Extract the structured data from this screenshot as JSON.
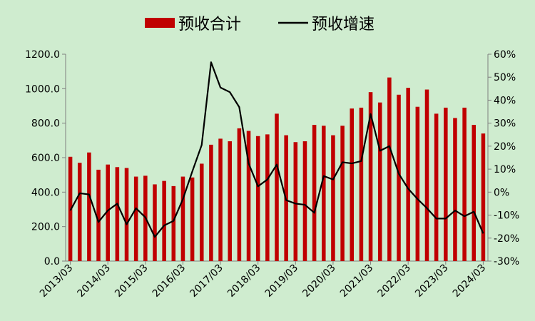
{
  "chart_data": {
    "type": "bar+line",
    "legend": [
      {
        "name": "预收合计",
        "kind": "bar",
        "color": "#c00000"
      },
      {
        "name": "预收增速",
        "kind": "line",
        "color": "#000000"
      }
    ],
    "left_axis": {
      "ylim": [
        0,
        1200
      ],
      "ticks": [
        0,
        200,
        400,
        600,
        800,
        1000,
        1200
      ],
      "tick_labels": [
        "0.0",
        "200.0",
        "400.0",
        "600.0",
        "800.0",
        "1000.0",
        "1200.0"
      ]
    },
    "right_axis": {
      "ylim": [
        -30,
        60
      ],
      "ticks": [
        -30,
        -20,
        -10,
        0,
        10,
        20,
        30,
        40,
        50,
        60
      ],
      "tick_labels": [
        "-30%",
        "-20%",
        "-10%",
        "0%",
        "10%",
        "20%",
        "30%",
        "40%",
        "50%",
        "60%"
      ]
    },
    "x_labels": [
      "2013/03",
      "2014/03",
      "2015/03",
      "2016/03",
      "2017/03",
      "2018/03",
      "2019/03",
      "2020/03",
      "2021/03",
      "2022/03",
      "2023/03",
      "2024/03"
    ],
    "categories": [
      "2013Q1",
      "2013Q2",
      "2013Q3",
      "2013Q4",
      "2014Q1",
      "2014Q2",
      "2014Q3",
      "2014Q4",
      "2015Q1",
      "2015Q2",
      "2015Q3",
      "2015Q4",
      "2016Q1",
      "2016Q2",
      "2016Q3",
      "2016Q4",
      "2017Q1",
      "2017Q2",
      "2017Q3",
      "2017Q4",
      "2018Q1",
      "2018Q2",
      "2018Q3",
      "2018Q4",
      "2019Q1",
      "2019Q2",
      "2019Q3",
      "2019Q4",
      "2020Q1",
      "2020Q2",
      "2020Q3",
      "2020Q4",
      "2021Q1",
      "2021Q2",
      "2021Q3",
      "2021Q4",
      "2022Q1",
      "2022Q2",
      "2022Q3",
      "2022Q4",
      "2023Q1",
      "2023Q2",
      "2023Q3",
      "2023Q4",
      "2024Q1"
    ],
    "series": [
      {
        "name": "预收合计",
        "type": "bar",
        "axis": "left",
        "values": [
          605,
          570,
          630,
          530,
          560,
          545,
          540,
          490,
          495,
          445,
          465,
          435,
          490,
          485,
          565,
          675,
          710,
          695,
          770,
          755,
          725,
          735,
          855,
          730,
          690,
          695,
          790,
          785,
          730,
          785,
          885,
          890,
          980,
          920,
          1065,
          965,
          1005,
          895,
          995,
          855,
          890,
          830,
          890,
          790,
          740
        ]
      },
      {
        "name": "预收增速",
        "type": "line",
        "axis": "right",
        "values": [
          -8,
          -0.5,
          -1,
          -13,
          -8,
          -5,
          -14,
          -7,
          -11,
          -19.5,
          -14.5,
          -12.5,
          -3,
          9,
          20.5,
          56.5,
          45.5,
          43.5,
          37,
          12.5,
          2.5,
          5.5,
          12,
          -3.5,
          -5,
          -5.5,
          -9,
          7,
          5.5,
          13,
          12.5,
          13.5,
          34,
          18,
          20,
          8,
          1.5,
          -3,
          -7,
          -11.5,
          -11.5,
          -8,
          -10.5,
          -8.5,
          -18
        ]
      }
    ],
    "grid": false
  }
}
